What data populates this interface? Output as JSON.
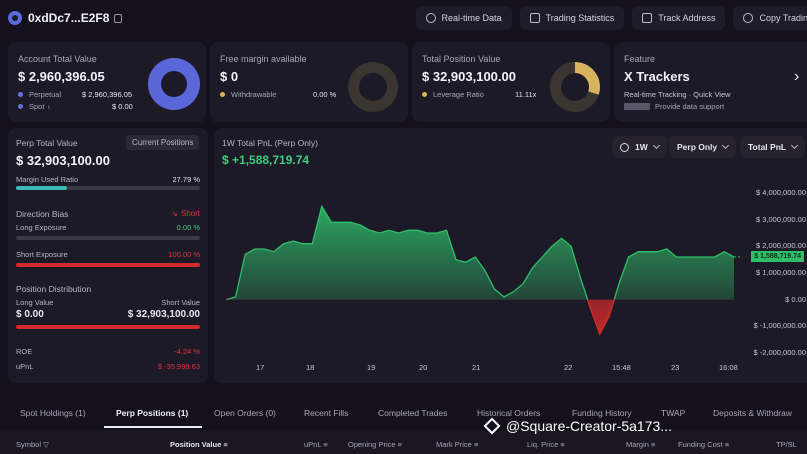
{
  "header": {
    "address": "0xdDc7...E2F8",
    "buttons": [
      "Real-time Data",
      "Trading Statistics",
      "Track Address",
      "Copy Trading"
    ]
  },
  "cards": {
    "account": {
      "title": "Account Total Value",
      "value": "$ 2,960,396.05",
      "rows": [
        {
          "label": "Perpetual",
          "value": "$ 2,960,396.05",
          "color": "#6670e0"
        },
        {
          "label": "Spot",
          "value": "$ 0.00",
          "color": "#6670e0"
        }
      ],
      "donut_color": "#5b67d9",
      "spot_chevron": "›"
    },
    "margin": {
      "title": "Free margin available",
      "value": "$ 0",
      "row_label": "Withdrawable",
      "row_value": "0.00 %",
      "dot_color": "#d9b25e"
    },
    "position": {
      "title": "Total Position Value",
      "value": "$ 32,903,100.00",
      "row_label": "Leverage Ratio",
      "row_value": "11.11x",
      "dot_color": "#d9b25e",
      "donut_fraction": 0.3
    },
    "feature": {
      "title": "Feature",
      "value": "X Trackers",
      "sub": "Real-time Tracking · Quick View",
      "note": "Provide data support",
      "chevron": "›"
    }
  },
  "left_panel": {
    "title": "Perp Total Value",
    "button": "Current Positions",
    "value": "$ 32,903,100.00",
    "margin_label": "Margin Used Ratio",
    "margin_value": "27.79 %",
    "margin_fraction": 0.2779,
    "bias_label": "Direction Bias",
    "bias_value": "Short",
    "long_exposure_label": "Long Exposure",
    "long_exposure_value": "0.00 %",
    "short_exposure_label": "Short Exposure",
    "short_exposure_value": "100.00 %",
    "short_fraction": 1.0,
    "distribution_label": "Position Distribution",
    "long_value_label": "Long Value",
    "short_value_label": "Short Value",
    "long_value": "$ 0.00",
    "short_value": "$ 32,903,100.00",
    "roe_label": "ROE",
    "roe_value": "-4.24 %",
    "upnl_label": "uPnL",
    "upnl_value": "$ -35,999.63",
    "colors": {
      "teal": "#3fb8b8",
      "red": "#d22a2a",
      "green": "#3acf7a"
    }
  },
  "chart_panel": {
    "title": "1W Total PnL (Perp Only)",
    "value": "$ +1,588,719.74",
    "controls": [
      "1W",
      "Perp Only",
      "Total PnL"
    ],
    "current_label": "$ 1,588,719.74"
  },
  "chart_data": {
    "type": "area",
    "title": "1W Total PnL (Perp Only)",
    "x_ticks": [
      "17",
      "18",
      "19",
      "20",
      "21",
      "22",
      "15:48",
      "23",
      "16:08"
    ],
    "y_ticks": [
      "$ 4,000,000.00",
      "$ 3,000,000.00",
      "$ 2,000,000.00",
      "$ 1,000,000.00",
      "$ 0.00",
      "$ -1,000,000.00",
      "$ -2,000,000.00"
    ],
    "ylim": [
      -2000000,
      4000000
    ],
    "x": [
      0,
      1,
      2,
      3,
      4,
      5,
      6,
      7,
      8,
      9,
      10,
      11,
      12,
      13,
      14,
      15,
      16,
      17,
      18,
      19,
      20,
      21,
      22,
      23,
      24,
      25,
      26,
      27,
      28,
      29,
      30,
      31,
      32,
      33,
      34,
      35,
      36,
      37,
      38,
      39,
      40,
      41,
      42,
      43,
      44,
      45,
      46,
      47,
      48,
      49,
      50,
      51,
      52,
      53
    ],
    "values": [
      0.0,
      100000.0,
      1700000.0,
      1900000.0,
      1900000.0,
      1800000.0,
      2100000.0,
      2200000.0,
      2100000.0,
      2100000.0,
      3500000.0,
      2900000.0,
      2900000.0,
      2900000.0,
      2800000.0,
      2600000.0,
      2500000.0,
      2600000.0,
      2500000.0,
      2600000.0,
      2600000.0,
      2500000.0,
      2500000.0,
      2600000.0,
      1500000.0,
      1400000.0,
      1600000.0,
      1100000.0,
      400000.0,
      100000.0,
      300000.0,
      600000.0,
      1200000.0,
      1600000.0,
      2000000.0,
      2300000.0,
      2000000.0,
      800000.0,
      -300000.0,
      -1300000.0,
      -600000.0,
      600000.0,
      1600000.0,
      1800000.0,
      1800000.0,
      1800000.0,
      1900000.0,
      1600000.0,
      1600000.0,
      1600000.0,
      1600000.0,
      1600000.0,
      1800000.0,
      1600000.0
    ],
    "colors": {
      "positive": "#2fbf6a",
      "negative": "#d22a2a"
    },
    "grid": false
  },
  "tabs": [
    "Spot Holdings (1)",
    "Perp Positions (1)",
    "Open Orders (0)",
    "Recent Fills",
    "Completed Trades",
    "Historical Orders",
    "Funding History",
    "TWAP",
    "Deposits & Withdraw"
  ],
  "active_tab": "Perp Positions (1)",
  "table_headers": [
    "Symbol",
    "Position Value",
    "uPnL",
    "Opening Price",
    "Mark Price",
    "Liq. Price",
    "Margin",
    "Funding Cost",
    "TP/SL"
  ],
  "watermark": "@Square-Creator-5a173..."
}
